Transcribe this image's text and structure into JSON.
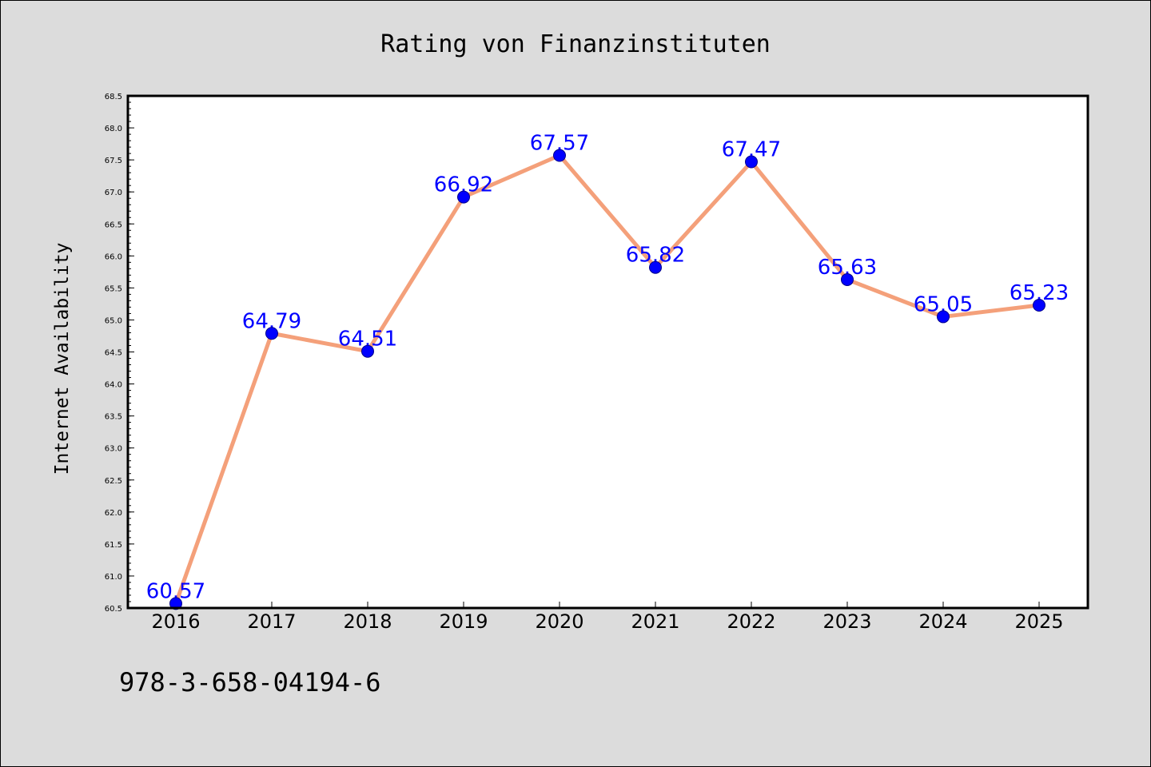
{
  "chart_data": {
    "type": "line",
    "title": "Rating von Finanzinstituten",
    "xlabel": "",
    "ylabel": "Internet Availability",
    "categories": [
      "2016",
      "2017",
      "2018",
      "2019",
      "2020",
      "2021",
      "2022",
      "2023",
      "2024",
      "2025"
    ],
    "series": [
      {
        "values": [
          60.57,
          64.79,
          64.51,
          66.92,
          67.57,
          65.82,
          67.47,
          65.63,
          65.05,
          65.23
        ],
        "data_labels": [
          "60.57",
          "64.79",
          "64.51",
          "66.92",
          "67.57",
          "65.82",
          "67.47",
          "65.63",
          "65.05",
          "65.23"
        ]
      }
    ],
    "ylim": [
      60.5,
      68.5
    ],
    "y_ticks": [
      "60.5",
      "61.0",
      "61.5",
      "62.0",
      "62.5",
      "63.0",
      "63.5",
      "64.0",
      "64.5",
      "65.0",
      "65.5",
      "66.0",
      "66.5",
      "67.0",
      "67.5",
      "68.0",
      "68.5"
    ],
    "grid": false,
    "legend": "none",
    "colors": {
      "line": "#f4a07a",
      "marker": "#0000ff",
      "data_label": "#0000ff",
      "plot_background": "#ffffff",
      "figure_background": "#dcdcdc"
    }
  },
  "footer": {
    "text": "978-3-658-04194-6"
  }
}
